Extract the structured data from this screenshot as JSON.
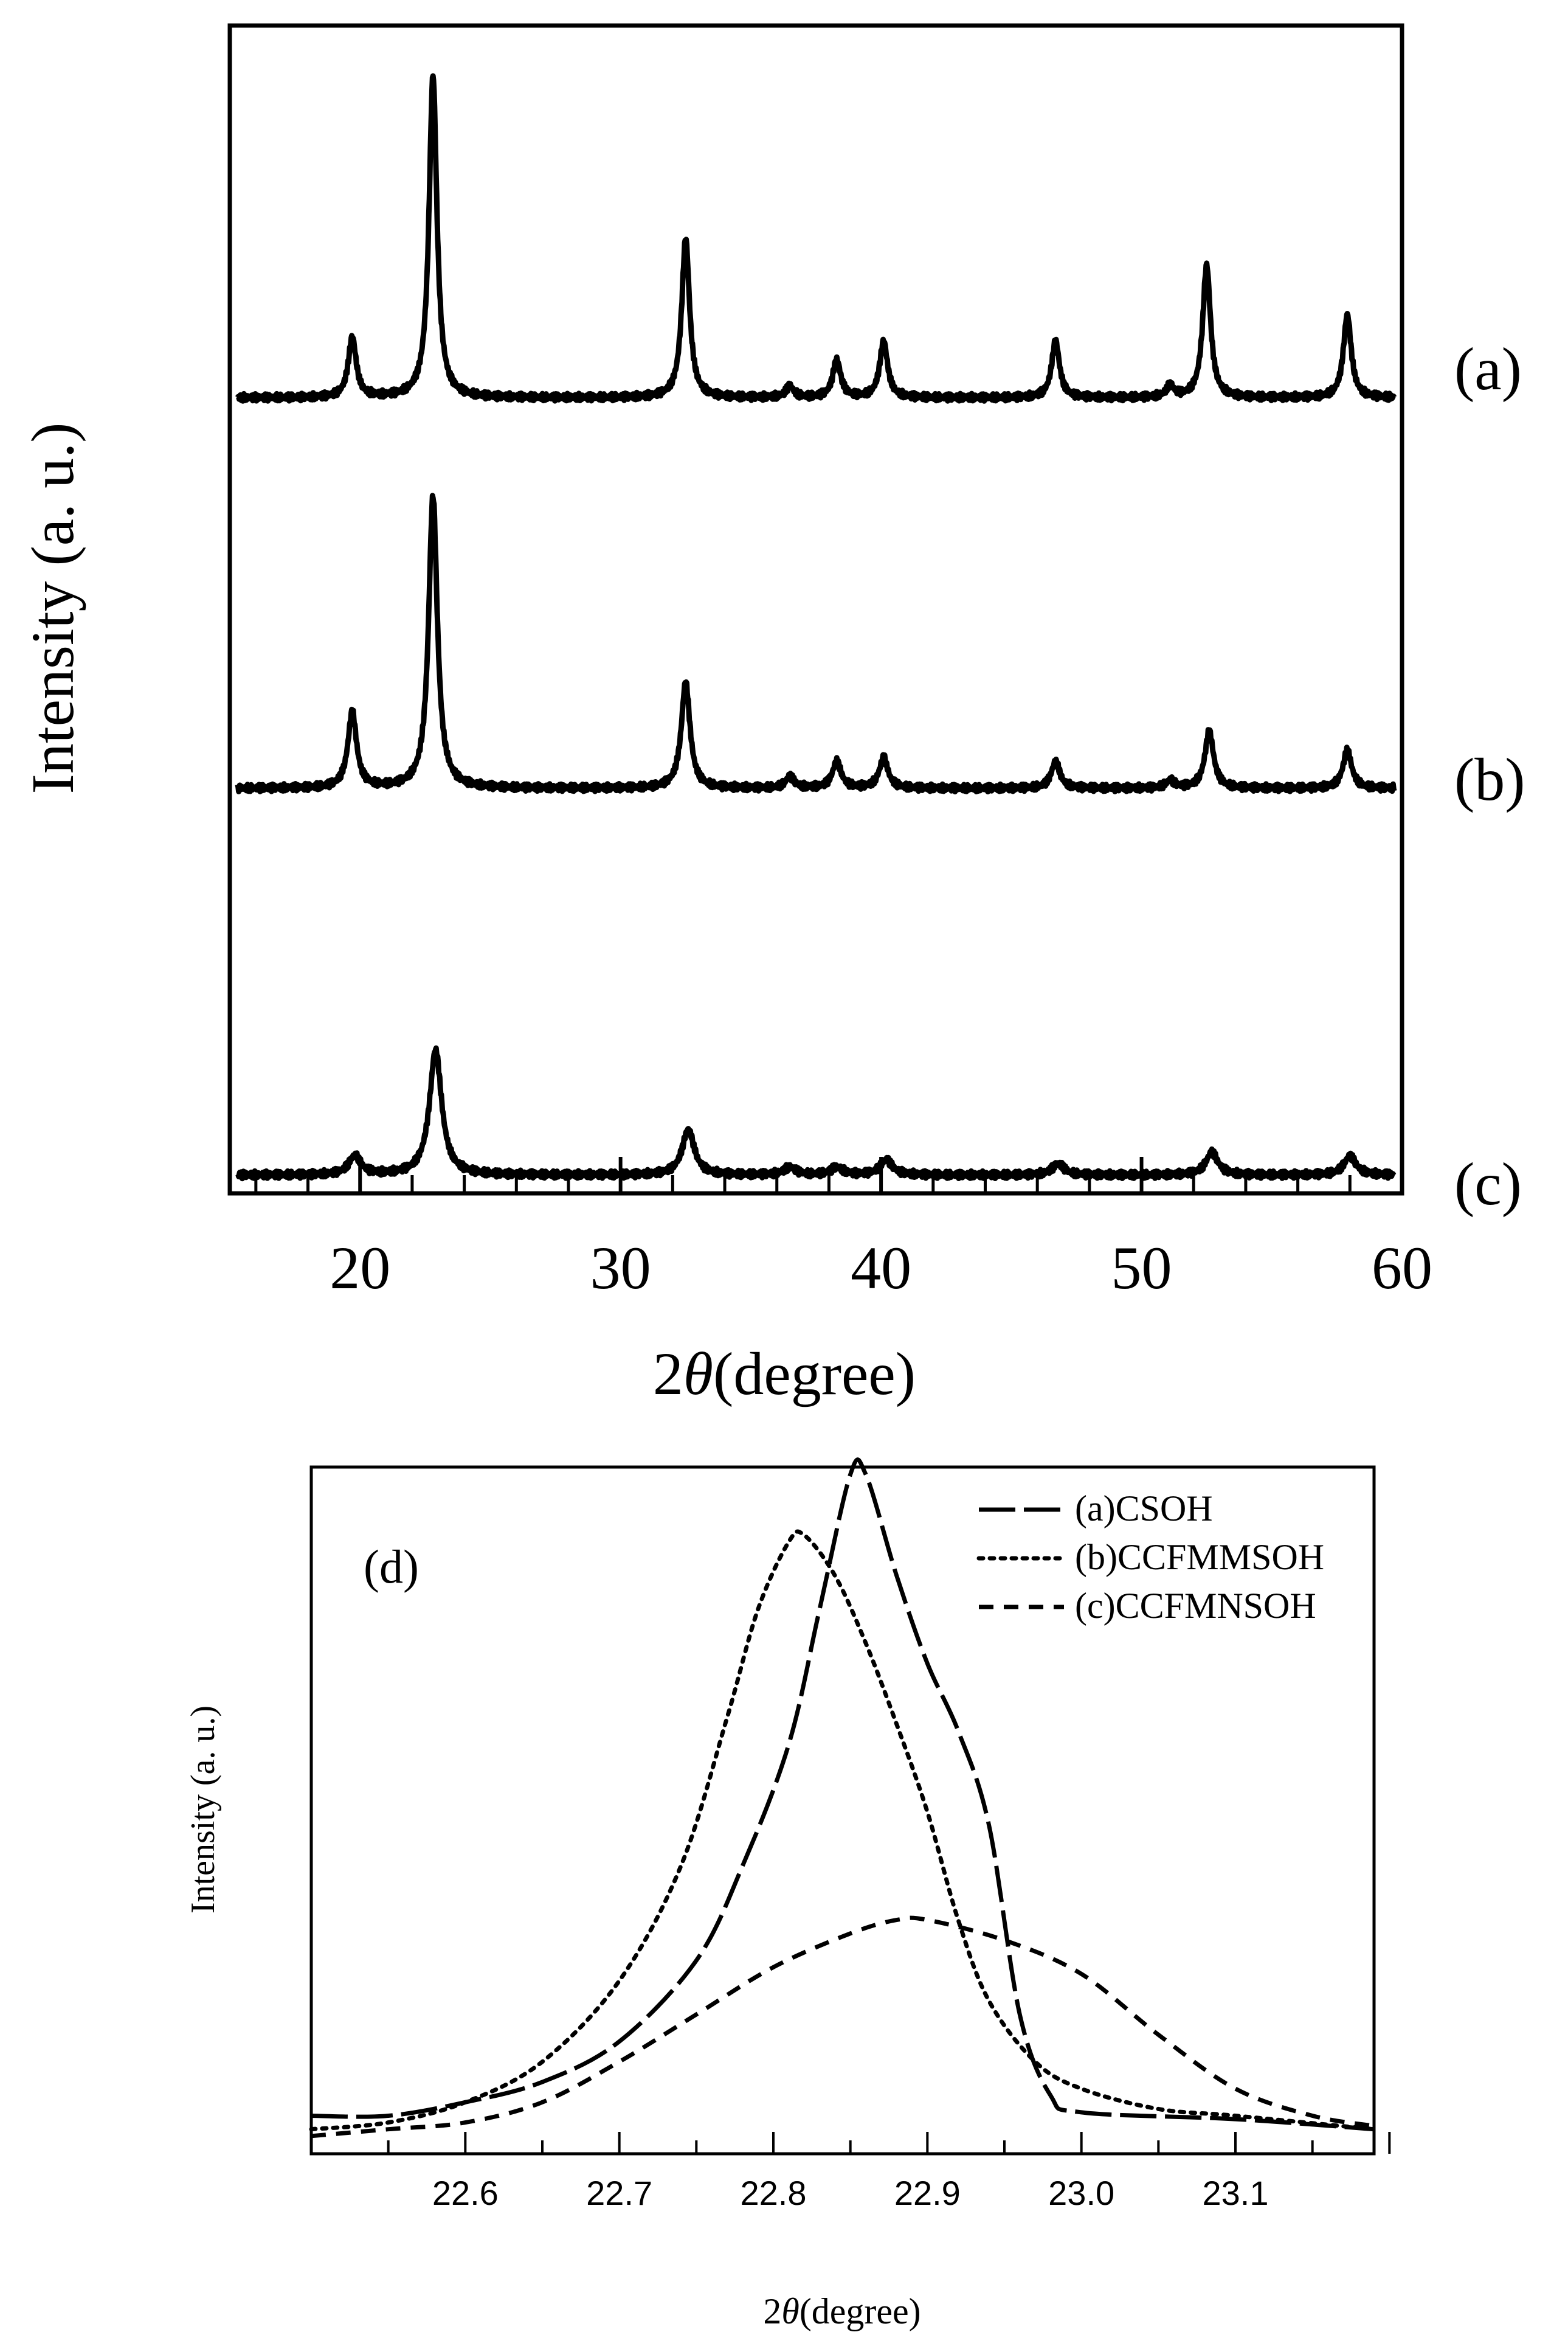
{
  "chart_data": [
    {
      "panel": "top",
      "type": "line",
      "title": "",
      "xlabel_prefix": "2",
      "xlabel_symbol": "θ",
      "xlabel_suffix": "(degree)",
      "ylabel": "Intensity (a. u.)",
      "xlim": [
        15,
        60
      ],
      "ylim": [
        0,
        3
      ],
      "xticks": [
        {
          "value": 20,
          "label": "20"
        },
        {
          "value": 30,
          "label": "30"
        },
        {
          "value": 40,
          "label": "40"
        },
        {
          "value": 50,
          "label": "50"
        },
        {
          "value": 60,
          "label": "60"
        }
      ],
      "grid": false,
      "series": [
        {
          "name": "(a)",
          "offset": 2.05,
          "width": 0.18,
          "peaks": [
            [
              19.7,
              0.16
            ],
            [
              22.8,
              0.85
            ],
            [
              32.5,
              0.42
            ],
            [
              36.5,
              0.03
            ],
            [
              38.3,
              0.1
            ],
            [
              40.1,
              0.15
            ],
            [
              46.7,
              0.15
            ],
            [
              51.1,
              0.03
            ],
            [
              52.5,
              0.35
            ],
            [
              57.9,
              0.22
            ]
          ]
        },
        {
          "name": "(b)",
          "offset": 1.02,
          "width": 0.2,
          "peaks": [
            [
              19.7,
              0.2
            ],
            [
              22.8,
              0.77
            ],
            [
              32.5,
              0.28
            ],
            [
              36.5,
              0.03
            ],
            [
              38.3,
              0.07
            ],
            [
              40.1,
              0.08
            ],
            [
              46.7,
              0.07
            ],
            [
              51.1,
              0.02
            ],
            [
              52.6,
              0.15
            ],
            [
              57.9,
              0.1
            ]
          ]
        },
        {
          "name": "(c)",
          "offset": 0.0,
          "width": 0.28,
          "peaks": [
            [
              19.8,
              0.05
            ],
            [
              22.9,
              0.33
            ],
            [
              32.6,
              0.12
            ],
            [
              36.5,
              0.02
            ],
            [
              38.3,
              0.02
            ],
            [
              40.2,
              0.04
            ],
            [
              46.8,
              0.03
            ],
            [
              52.7,
              0.06
            ],
            [
              58.0,
              0.05
            ]
          ]
        }
      ],
      "series_labels": [
        "(a)",
        "(b)",
        "(c)"
      ]
    },
    {
      "panel": "bottom",
      "type": "line",
      "annotation": "(d)",
      "xlabel_prefix": "2",
      "xlabel_symbol": "θ",
      "xlabel_suffix": "(degree)",
      "ylabel": "Intensity (a. u.)",
      "xlim": [
        22.5,
        23.19
      ],
      "ylim": [
        0,
        1
      ],
      "xticks": [
        {
          "value": 22.6,
          "label": "22.6"
        },
        {
          "value": 22.7,
          "label": "22.7"
        },
        {
          "value": 22.8,
          "label": "22.8"
        },
        {
          "value": 22.9,
          "label": "22.9"
        },
        {
          "value": 23.0,
          "label": "23.0"
        },
        {
          "value": 23.1,
          "label": "23.1"
        }
      ],
      "grid": false,
      "legend_position": "top-right",
      "series": [
        {
          "name": "(a)CSOH",
          "style": "long-dash",
          "points": [
            [
              22.5,
              0.05
            ],
            [
              22.55,
              0.05
            ],
            [
              22.6,
              0.07
            ],
            [
              22.65,
              0.1
            ],
            [
              22.7,
              0.16
            ],
            [
              22.75,
              0.28
            ],
            [
              22.78,
              0.42
            ],
            [
              22.81,
              0.6
            ],
            [
              22.83,
              0.8
            ],
            [
              22.85,
              1.0
            ],
            [
              22.86,
              1.0
            ],
            [
              22.88,
              0.85
            ],
            [
              22.9,
              0.72
            ],
            [
              22.92,
              0.62
            ],
            [
              22.94,
              0.48
            ],
            [
              22.96,
              0.2
            ],
            [
              22.98,
              0.08
            ],
            [
              23.0,
              0.055
            ],
            [
              23.1,
              0.045
            ],
            [
              23.19,
              0.03
            ]
          ]
        },
        {
          "name": "(b)CCFMMSOH",
          "style": "dotted",
          "points": [
            [
              22.5,
              0.03
            ],
            [
              22.55,
              0.04
            ],
            [
              22.6,
              0.07
            ],
            [
              22.65,
              0.13
            ],
            [
              22.7,
              0.25
            ],
            [
              22.74,
              0.42
            ],
            [
              22.77,
              0.64
            ],
            [
              22.79,
              0.8
            ],
            [
              22.81,
              0.9
            ],
            [
              22.82,
              0.91
            ],
            [
              22.84,
              0.85
            ],
            [
              22.86,
              0.75
            ],
            [
              22.88,
              0.63
            ],
            [
              22.9,
              0.5
            ],
            [
              22.92,
              0.34
            ],
            [
              22.94,
              0.22
            ],
            [
              22.97,
              0.13
            ],
            [
              23.0,
              0.09
            ],
            [
              23.05,
              0.06
            ],
            [
              23.1,
              0.05
            ],
            [
              23.19,
              0.03
            ]
          ]
        },
        {
          "name": "(c)CCFMNSOH",
          "style": "dashed",
          "points": [
            [
              22.5,
              0.02
            ],
            [
              22.55,
              0.03
            ],
            [
              22.6,
              0.04
            ],
            [
              22.65,
              0.07
            ],
            [
              22.7,
              0.13
            ],
            [
              22.75,
              0.2
            ],
            [
              22.8,
              0.27
            ],
            [
              22.85,
              0.32
            ],
            [
              22.88,
              0.34
            ],
            [
              22.9,
              0.34
            ],
            [
              22.95,
              0.31
            ],
            [
              23.0,
              0.26
            ],
            [
              23.05,
              0.17
            ],
            [
              23.1,
              0.09
            ],
            [
              23.15,
              0.05
            ],
            [
              23.19,
              0.035
            ]
          ]
        }
      ]
    }
  ]
}
